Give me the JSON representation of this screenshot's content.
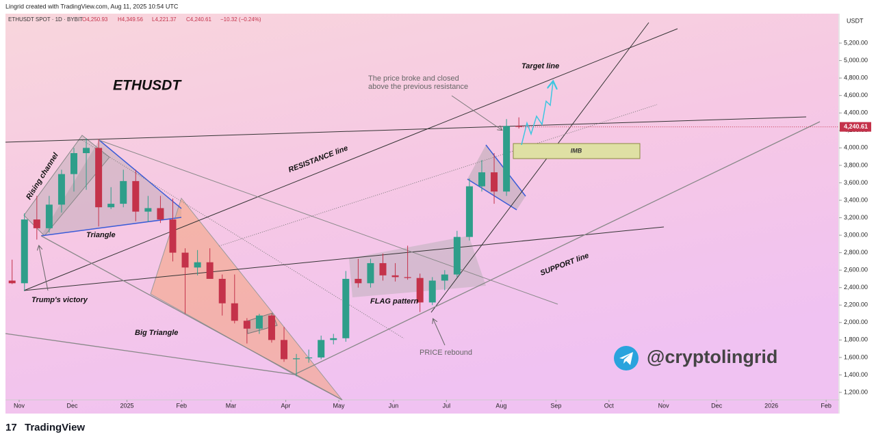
{
  "header": {
    "credit": "Lingrid created with TradingView.com, Aug 11, 2025 10:54 UTC",
    "symbol": "ETHUSDT SPOT · 1D · BYBIT",
    "open": "O4,250.93",
    "high": "H4,349.56",
    "low": "L4,221.37",
    "close": "C4,240.61",
    "change": "−10.32 (−0.24%)"
  },
  "footer": {
    "brand": "TradingView"
  },
  "chart_data": {
    "type": "candlestick",
    "title": "ETHUSDT",
    "currency": "USDT",
    "up_color": "#2e9e8a",
    "down_color": "#c4324a",
    "categories": [
      null,
      null,
      null,
      null,
      null,
      null,
      null,
      null,
      null,
      null,
      null,
      null,
      null,
      null,
      null,
      null,
      null,
      null,
      null,
      null,
      null,
      null,
      null,
      null,
      null,
      null,
      null,
      null,
      null,
      null,
      null,
      null,
      null,
      null,
      null,
      null,
      null,
      null,
      null,
      null,
      null,
      null
    ],
    "open": [
      2480,
      2450,
      3180,
      3080,
      3350,
      3700,
      3940,
      4000,
      3320,
      3360,
      3620,
      3270,
      3310,
      3180,
      2800,
      2630,
      2690,
      2500,
      2220,
      2020,
      1930,
      2080,
      1800,
      1580,
      1590,
      1600,
      1800,
      1820,
      2500,
      2450,
      2680,
      2540,
      2520,
      2510,
      2230,
      2480,
      2550,
      2980,
      3560,
      3720,
      3500,
      4250.93
    ],
    "high": [
      2720,
      3250,
      3450,
      3450,
      3750,
      4000,
      4110,
      4100,
      3550,
      3750,
      3750,
      3450,
      3450,
      3420,
      2850,
      2830,
      2850,
      2550,
      2550,
      2050,
      2100,
      2100,
      1950,
      1640,
      1690,
      1850,
      1870,
      2590,
      2730,
      2730,
      2790,
      2680,
      2880,
      2560,
      2520,
      2600,
      3050,
      3650,
      3860,
      3940,
      4330,
      4349.56
    ],
    "low": [
      2440,
      2360,
      2950,
      3030,
      3260,
      3500,
      3520,
      3100,
      3300,
      3320,
      3160,
      3150,
      3140,
      2700,
      2100,
      2540,
      2500,
      2080,
      1990,
      1760,
      1870,
      1770,
      1550,
      1385,
      1540,
      1580,
      1750,
      1780,
      2400,
      2400,
      2480,
      2470,
      2490,
      2120,
      2200,
      2370,
      2520,
      2940,
      3500,
      3360,
      3450,
      4221.37
    ],
    "close": [
      2450,
      3180,
      3080,
      3350,
      3700,
      3940,
      4000,
      3320,
      3360,
      3620,
      3270,
      3310,
      3180,
      2800,
      2630,
      2690,
      2500,
      2220,
      2020,
      1930,
      2080,
      1800,
      1580,
      1590,
      1600,
      1800,
      1820,
      2500,
      2450,
      2680,
      2540,
      2520,
      2510,
      2230,
      2480,
      2550,
      2980,
      3560,
      3720,
      3500,
      4250.93,
      4240.61
    ],
    "last_price": {
      "value": 4240.61,
      "label": "4,240.61"
    },
    "ylim": [
      1114,
      5537
    ],
    "yticks": [
      {
        "value": 1200,
        "label": "1,200.00"
      },
      {
        "value": 1400,
        "label": "1,400.00"
      },
      {
        "value": 1600,
        "label": "1,600.00"
      },
      {
        "value": 1800,
        "label": "1,800.00"
      },
      {
        "value": 2000,
        "label": "2,000.00"
      },
      {
        "value": 2200,
        "label": "2,200.00"
      },
      {
        "value": 2400,
        "label": "2,400.00"
      },
      {
        "value": 2600,
        "label": "2,600.00"
      },
      {
        "value": 2800,
        "label": "2,800.00"
      },
      {
        "value": 3000,
        "label": "3,000.00"
      },
      {
        "value": 3200,
        "label": "3,200.00"
      },
      {
        "value": 3400,
        "label": "3,400.00"
      },
      {
        "value": 3600,
        "label": "3,600.00"
      },
      {
        "value": 3800,
        "label": "3,800.00"
      },
      {
        "value": 4000,
        "label": "4,000.00"
      },
      {
        "value": 4200,
        "label": "4,200.00"
      },
      {
        "value": 4400,
        "label": "4,400.00"
      },
      {
        "value": 4600,
        "label": "4,600.00"
      },
      {
        "value": 4800,
        "label": "4,800.00"
      },
      {
        "value": 5000,
        "label": "5,000.00"
      },
      {
        "value": 5200,
        "label": "5,200.00"
      }
    ],
    "xticks": [
      {
        "value": 0.57,
        "label": "Nov"
      },
      {
        "value": 4.86,
        "label": "Dec"
      },
      {
        "value": 9.29,
        "label": "2025"
      },
      {
        "value": 13.71,
        "label": "Feb"
      },
      {
        "value": 17.71,
        "label": "Mar"
      },
      {
        "value": 22.14,
        "label": "Apr"
      },
      {
        "value": 26.43,
        "label": "May"
      },
      {
        "value": 30.86,
        "label": "Jun"
      },
      {
        "value": 35.14,
        "label": "Jul"
      },
      {
        "value": 39.57,
        "label": "Aug"
      },
      {
        "value": 44,
        "label": "Sep"
      },
      {
        "value": 48.29,
        "label": "Oct"
      },
      {
        "value": 52.71,
        "label": "Nov"
      },
      {
        "value": 57,
        "label": "Dec"
      },
      {
        "value": 61.43,
        "label": "2026"
      },
      {
        "value": 65.86,
        "label": "Feb"
      }
    ],
    "annotations": {
      "rising_channel": "Rising channel",
      "triangle": "Triangle",
      "trump": "Trump's victory",
      "big_triangle": "Big Triangle",
      "resistance": "RESISTANCE line",
      "flag": "FLAG pattern",
      "rebound": "PRICE rebound",
      "support": "SUPPORT line",
      "target": "Target line",
      "broke_1": "The price broke and closed",
      "broke_2": "above the previous resistance",
      "imb": "IMB",
      "handle": "@cryptolingrid"
    }
  }
}
